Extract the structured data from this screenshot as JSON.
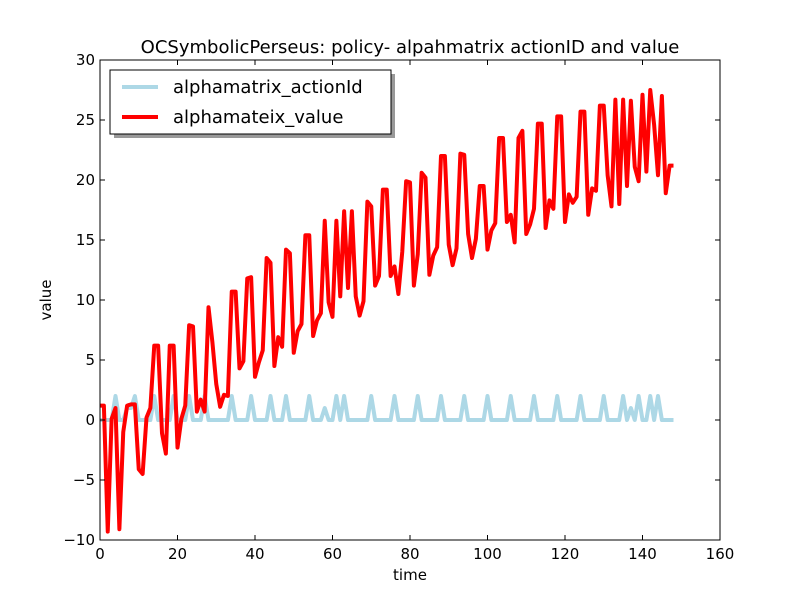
{
  "chart_data": {
    "type": "line",
    "title": "OCSymbolicPerseus: policy- alpahmatrix actionID and value",
    "xlabel": "time",
    "ylabel": "value",
    "xlim": [
      0,
      160
    ],
    "ylim": [
      -10,
      30
    ],
    "xticks": [
      0,
      20,
      40,
      60,
      80,
      100,
      120,
      140,
      160
    ],
    "yticks": [
      -10,
      -5,
      0,
      5,
      10,
      15,
      20,
      25,
      30
    ],
    "xtick_labels": [
      "0",
      "20",
      "40",
      "60",
      "80",
      "100",
      "120",
      "140",
      "160"
    ],
    "ytick_labels": [
      "−10",
      "−5",
      "0",
      "5",
      "10",
      "15",
      "20",
      "25",
      "30"
    ],
    "grid": false,
    "legend_position": "top-left",
    "series": [
      {
        "name": "alphamatrix_actionId",
        "color": "#add8e6",
        "x": [
          0,
          1,
          2,
          3,
          4,
          5,
          6,
          7,
          8,
          9,
          10,
          11,
          12,
          13,
          14,
          15,
          16,
          17,
          18,
          19,
          20,
          21,
          22,
          23,
          24,
          25,
          26,
          27,
          28,
          29,
          30,
          31,
          32,
          33,
          34,
          35,
          36,
          37,
          38,
          39,
          40,
          41,
          42,
          43,
          44,
          45,
          46,
          47,
          48,
          49,
          50,
          51,
          52,
          53,
          54,
          55,
          56,
          57,
          58,
          59,
          60,
          61,
          62,
          63,
          64,
          65,
          66,
          67,
          68,
          69,
          70,
          71,
          72,
          73,
          74,
          75,
          76,
          77,
          78,
          79,
          80,
          81,
          82,
          83,
          84,
          85,
          86,
          87,
          88,
          89,
          90,
          91,
          92,
          93,
          94,
          95,
          96,
          97,
          98,
          99,
          100,
          101,
          102,
          103,
          104,
          105,
          106,
          107,
          108,
          109,
          110,
          111,
          112,
          113,
          114,
          115,
          116,
          117,
          118,
          119,
          120,
          121,
          122,
          123,
          124,
          125,
          126,
          127,
          128,
          129,
          130,
          131,
          132,
          133,
          134,
          135,
          136,
          137,
          138,
          139,
          140,
          141,
          142,
          143,
          144,
          145,
          146,
          147,
          148
        ],
        "values": [
          0,
          0,
          0,
          0,
          2,
          0,
          0,
          1,
          1,
          2,
          0,
          0,
          0,
          0,
          2,
          0,
          0,
          0,
          0,
          2,
          0,
          0,
          0,
          2,
          0,
          0,
          0,
          2,
          0,
          0,
          0,
          0,
          0,
          0,
          2,
          0,
          0,
          0,
          0,
          2,
          0,
          0,
          0,
          0,
          2,
          0,
          0,
          0,
          2,
          0,
          0,
          0,
          0,
          0,
          2,
          0,
          0,
          0,
          1,
          0,
          0,
          2,
          0,
          2,
          0,
          0,
          0,
          0,
          0,
          0,
          2,
          0,
          0,
          0,
          0,
          0,
          2,
          0,
          0,
          0,
          0,
          0,
          2,
          0,
          0,
          0,
          0,
          0,
          2,
          0,
          0,
          0,
          0,
          0,
          2,
          0,
          0,
          0,
          0,
          0,
          2,
          0,
          0,
          0,
          0,
          0,
          2,
          0,
          0,
          0,
          0,
          0,
          2,
          0,
          0,
          0,
          0,
          0,
          2,
          0,
          0,
          0,
          0,
          0,
          2,
          0,
          0,
          0,
          0,
          0,
          2,
          0,
          0,
          0,
          0,
          2,
          0,
          1,
          0,
          2,
          0,
          0,
          2,
          0,
          2,
          0,
          0,
          0,
          0
        ]
      },
      {
        "name": "alphamateix_value",
        "color": "#ff0000",
        "x": [
          0,
          1,
          2,
          3,
          4,
          5,
          6,
          7,
          8,
          9,
          10,
          11,
          12,
          13,
          14,
          15,
          16,
          17,
          18,
          19,
          20,
          21,
          22,
          23,
          24,
          25,
          26,
          27,
          28,
          29,
          30,
          31,
          32,
          33,
          34,
          35,
          36,
          37,
          38,
          39,
          40,
          41,
          42,
          43,
          44,
          45,
          46,
          47,
          48,
          49,
          50,
          51,
          52,
          53,
          54,
          55,
          56,
          57,
          58,
          59,
          60,
          61,
          62,
          63,
          64,
          65,
          66,
          67,
          68,
          69,
          70,
          71,
          72,
          73,
          74,
          75,
          76,
          77,
          78,
          79,
          80,
          81,
          82,
          83,
          84,
          85,
          86,
          87,
          88,
          89,
          90,
          91,
          92,
          93,
          94,
          95,
          96,
          97,
          98,
          99,
          100,
          101,
          102,
          103,
          104,
          105,
          106,
          107,
          108,
          109,
          110,
          111,
          112,
          113,
          114,
          115,
          116,
          117,
          118,
          119,
          120,
          121,
          122,
          123,
          124,
          125,
          126,
          127,
          128,
          129,
          130,
          131,
          132,
          133,
          134,
          135,
          136,
          137,
          138,
          139,
          140,
          141,
          142,
          143,
          144,
          145,
          146,
          147,
          148
        ],
        "values": [
          1.2,
          1.2,
          -9.3,
          0.1,
          1.0,
          -9.1,
          -1.0,
          1.2,
          1.3,
          1.3,
          -4.1,
          -4.5,
          0.2,
          1.0,
          6.2,
          6.2,
          -1.1,
          -2.8,
          6.2,
          6.2,
          -2.3,
          0.1,
          1.2,
          7.9,
          7.8,
          0.7,
          1.7,
          0.7,
          9.4,
          6.5,
          3.0,
          1.1,
          2.1,
          2.0,
          10.7,
          10.7,
          4.3,
          4.9,
          11.8,
          11.9,
          3.6,
          4.8,
          5.8,
          13.5,
          13.1,
          4.5,
          6.9,
          6.1,
          14.2,
          13.9,
          5.6,
          7.4,
          8.0,
          15.4,
          15.4,
          7.0,
          8.3,
          8.9,
          16.6,
          9.8,
          8.6,
          16.6,
          10.3,
          17.4,
          11.0,
          17.4,
          10.3,
          8.7,
          9.9,
          18.2,
          17.8,
          11.2,
          12.0,
          19.2,
          19.2,
          12.0,
          12.8,
          10.5,
          14.0,
          19.9,
          19.8,
          11.2,
          13.8,
          20.6,
          20.2,
          12.1,
          13.7,
          14.4,
          22.0,
          22.0,
          14.6,
          12.9,
          14.3,
          22.2,
          22.1,
          15.5,
          13.5,
          15.1,
          19.5,
          19.5,
          14.2,
          15.8,
          16.4,
          23.5,
          23.5,
          16.5,
          17.1,
          14.8,
          23.5,
          24.1,
          15.5,
          16.3,
          17.6,
          24.7,
          24.7,
          16.0,
          18.3,
          17.6,
          25.3,
          25.3,
          16.5,
          18.8,
          18.1,
          18.6,
          25.7,
          25.7,
          17.1,
          19.3,
          19.1,
          26.2,
          26.2,
          20.4,
          17.8,
          26.7,
          18.0,
          26.7,
          19.5,
          26.6,
          21.1,
          19.9,
          27.1,
          20.7,
          27.5,
          24.6,
          20.4,
          27.0,
          18.9,
          21.2,
          21.2
        ]
      }
    ]
  }
}
